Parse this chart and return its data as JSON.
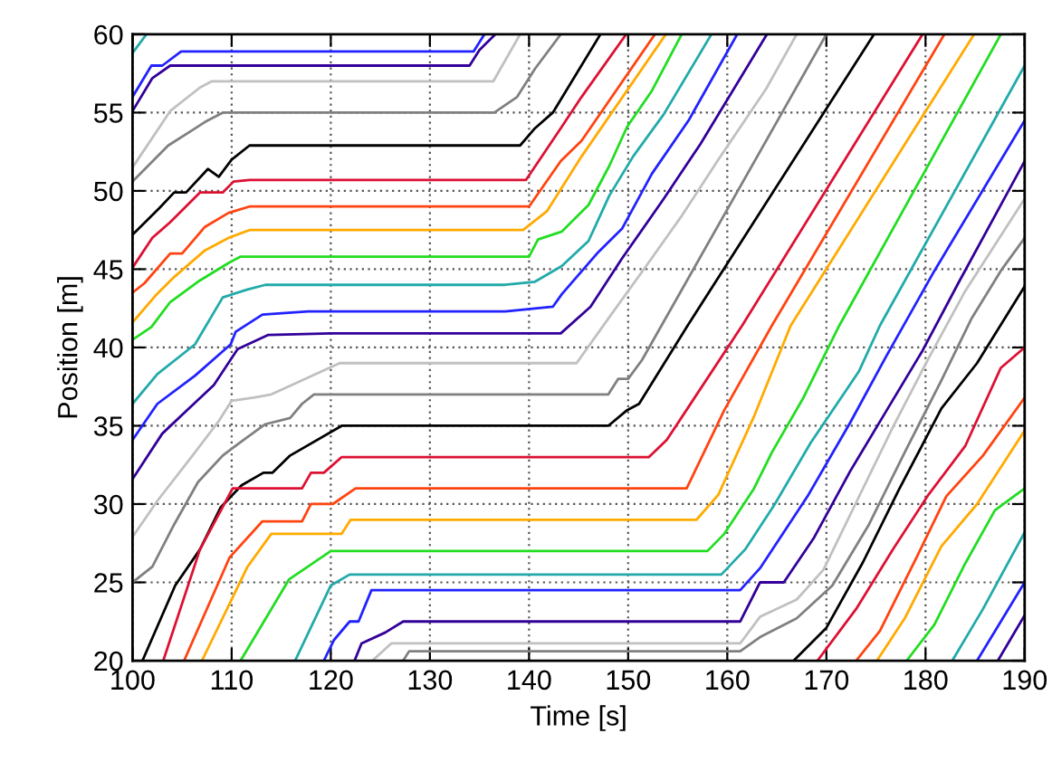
{
  "chart_data": {
    "type": "line",
    "xlabel": "Time [s]",
    "ylabel": "Position [m]",
    "xlim": [
      100,
      190
    ],
    "ylim": [
      20,
      60
    ],
    "xticks": [
      100,
      110,
      120,
      130,
      140,
      150,
      160,
      170,
      180,
      190
    ],
    "yticks": [
      20,
      25,
      30,
      35,
      40,
      45,
      50,
      55,
      60
    ],
    "grid": true,
    "line_style": "solid",
    "series": [
      {
        "color": "#22aaaa",
        "x": [
          100,
          101.4
        ],
        "values": [
          58.8,
          60
        ]
      },
      {
        "color": "#2222ff",
        "x": [
          100,
          101.9,
          103,
          104.9,
          134.4,
          135.5
        ],
        "values": [
          56.0,
          58,
          58,
          58.9,
          58.9,
          60
        ]
      },
      {
        "color": "#330099",
        "x": [
          100,
          102,
          103.8,
          134.0,
          135,
          136.6
        ],
        "values": [
          55.1,
          57.2,
          58,
          58,
          59,
          60
        ]
      },
      {
        "color": "#c0c0c0",
        "x": [
          100,
          103.8,
          106.8,
          108,
          136.4,
          139.1
        ],
        "values": [
          51.5,
          55.1,
          56.6,
          57.0,
          57.0,
          60
        ]
      },
      {
        "color": "#808080",
        "x": [
          100,
          103.6,
          106.1,
          107.3,
          109.1,
          136.5,
          138.8,
          140.6,
          143.2
        ],
        "values": [
          50.6,
          52.9,
          53.9,
          54.4,
          55.0,
          55.0,
          56.0,
          57.8,
          60
        ]
      },
      {
        "color": "#000000",
        "x": [
          100,
          102.7,
          104.2,
          105.4,
          107.6,
          108.7,
          110,
          111.8,
          139.1,
          140.6,
          142.4,
          147.2
        ],
        "values": [
          47.2,
          48.9,
          49.9,
          49.9,
          51.4,
          50.9,
          52.0,
          52.9,
          52.9,
          54.0,
          55.0,
          60
        ]
      },
      {
        "color": "#dd1133",
        "x": [
          100,
          102,
          103.8,
          106.8,
          109.1,
          110.2,
          111.8,
          139.7,
          143.2,
          145.3,
          149.8
        ],
        "values": [
          45.1,
          47.0,
          48.0,
          49.9,
          49.9,
          50.6,
          50.7,
          50.7,
          54.0,
          56.0,
          60
        ]
      },
      {
        "color": "#ff4411",
        "x": [
          100,
          101.2,
          103.8,
          105,
          107.3,
          109.7,
          111.8,
          140,
          143.2,
          145.3,
          152.7
        ],
        "values": [
          43.5,
          44.1,
          46.0,
          46.0,
          47.7,
          48.6,
          49.0,
          49.0,
          51.9,
          53.2,
          60
        ]
      },
      {
        "color": "#ffaa00",
        "x": [
          100,
          102.3,
          104.2,
          107.3,
          109.7,
          111.8,
          139.4,
          141.8,
          145.3,
          153.8
        ],
        "values": [
          41.6,
          43.3,
          44.5,
          46.2,
          47.0,
          47.5,
          47.5,
          48.7,
          52.2,
          60
        ]
      },
      {
        "color": "#22dd22",
        "x": [
          100,
          101.9,
          103.8,
          106.6,
          109.7,
          110.9,
          140,
          140.9,
          143.3,
          146,
          148.1,
          149.9,
          152.4,
          155.4
        ],
        "values": [
          40.5,
          41.3,
          42.9,
          44.2,
          45.4,
          45.8,
          45.8,
          46.9,
          47.4,
          49.1,
          51.6,
          54.1,
          56.4,
          60
        ]
      },
      {
        "color": "#22aaaa",
        "x": [
          100,
          102.5,
          106.3,
          109.1,
          111.6,
          113.4,
          137.6,
          140.6,
          143.3,
          146,
          148.1,
          150.5,
          153.6,
          158.4
        ],
        "values": [
          36.4,
          38.3,
          40.2,
          43.2,
          43.7,
          44.0,
          44.0,
          44.2,
          45.2,
          46.8,
          49.7,
          52.2,
          54.9,
          60
        ]
      },
      {
        "color": "#2222ff",
        "x": [
          100,
          102.5,
          106.3,
          109.9,
          110.4,
          113.1,
          117.7,
          137.6,
          142.4,
          143.3,
          147,
          149.4,
          152.4,
          156.1,
          161
        ],
        "values": [
          34.1,
          36.4,
          38.2,
          40.2,
          41.0,
          42.1,
          42.3,
          42.3,
          42.6,
          43.4,
          46.1,
          47.6,
          51.1,
          54.5,
          60
        ]
      },
      {
        "color": "#330099",
        "x": [
          100,
          103,
          105.5,
          108.2,
          110.6,
          113.7,
          120,
          143.2,
          146.2,
          149.4,
          153.6,
          157.3,
          164
        ],
        "values": [
          31.6,
          34.5,
          36.0,
          37.6,
          39.9,
          40.8,
          40.9,
          40.9,
          42.6,
          45.7,
          49.5,
          53.0,
          60
        ]
      },
      {
        "color": "#c0c0c0",
        "x": [
          100,
          102.5,
          106.3,
          108.7,
          110,
          112.2,
          114,
          120.9,
          144.8,
          148.4,
          151.7,
          155.4,
          159,
          163.9,
          167
        ],
        "values": [
          27.9,
          30.2,
          33.3,
          35.3,
          36.6,
          36.8,
          37.0,
          39.0,
          39.0,
          42.2,
          45.1,
          48.4,
          51.9,
          56.5,
          60
        ]
      },
      {
        "color": "#808080",
        "x": [
          100,
          102,
          104.2,
          106.6,
          109.1,
          111.2,
          113.4,
          115.9,
          117.1,
          118.3,
          148,
          149,
          150,
          151.4,
          170
        ],
        "values": [
          25.0,
          26.0,
          28.7,
          31.4,
          33.1,
          34.1,
          35.1,
          35.5,
          36.4,
          37.0,
          37.0,
          38.0,
          38.0,
          39.2,
          60
        ]
      },
      {
        "color": "#000000",
        "x": [
          101,
          104.3,
          106.8,
          108.9,
          111,
          113.2,
          114.1,
          115.9,
          121.1,
          148,
          149.9,
          151.1,
          156,
          174.8
        ],
        "values": [
          20,
          24.8,
          27.1,
          29.8,
          31.2,
          32.0,
          32.0,
          33.1,
          35.0,
          35.0,
          36.0,
          36.4,
          41.4,
          60
        ]
      },
      {
        "color": "#dd1133",
        "x": [
          103.1,
          106.8,
          110.1,
          117.1,
          118,
          119.3,
          121.1,
          152.1,
          153.9,
          161.5,
          179.7
        ],
        "values": [
          20,
          27.1,
          31.0,
          31.0,
          32.0,
          32.0,
          33.0,
          33.0,
          34.1,
          41.4,
          60
        ]
      },
      {
        "color": "#ff4411",
        "x": [
          105.2,
          109.8,
          113.1,
          117.1,
          118,
          120.2,
          122.5,
          155.9,
          159.7,
          164.5,
          181.9
        ],
        "values": [
          20,
          26.6,
          28.9,
          28.9,
          30.0,
          30.0,
          31.0,
          31.0,
          36.0,
          41.4,
          60
        ]
      },
      {
        "color": "#ffaa00",
        "x": [
          107,
          111.6,
          114,
          121.1,
          122,
          156.9,
          159.1,
          162.7,
          166.4,
          184.9
        ],
        "values": [
          20,
          26.0,
          28.1,
          28.1,
          29.0,
          29.0,
          30.6,
          35.6,
          41.4,
          60
        ]
      },
      {
        "color": "#22dd22",
        "x": [
          110.9,
          115.8,
          120,
          158,
          159.7,
          162.7,
          164.5,
          167.6,
          171.3,
          187.6
        ],
        "values": [
          20,
          25.2,
          27.0,
          27.0,
          28.1,
          31.0,
          33.3,
          36.7,
          41.4,
          60
        ]
      },
      {
        "color": "#22aaaa",
        "x": [
          116.4,
          120,
          121.9,
          159.4,
          161.8,
          164.8,
          168.4,
          173.3,
          175.4,
          190
        ],
        "values": [
          20,
          24.8,
          25.5,
          25.5,
          27.1,
          30.0,
          33.9,
          38.5,
          41.4,
          58
        ]
      },
      {
        "color": "#2222ff",
        "x": [
          119.3,
          120.3,
          121.9,
          122.8,
          124.1,
          161.3,
          163.3,
          168.1,
          172.4,
          176,
          180.9,
          190
        ],
        "values": [
          20,
          21.3,
          22.5,
          22.5,
          24.5,
          24.5,
          25.9,
          30.5,
          35.2,
          39.4,
          44.9,
          54.5
        ]
      },
      {
        "color": "#330099",
        "x": [
          122.4,
          123.1,
          125.5,
          127.3,
          161.3,
          163.3,
          165.7,
          168.7,
          172.4,
          176,
          179.7,
          183.3,
          190
        ],
        "values": [
          20,
          21.1,
          21.8,
          22.5,
          22.5,
          25.0,
          25.0,
          27.8,
          32.1,
          35.9,
          39.8,
          44.1,
          51.9
        ]
      },
      {
        "color": "#c0c0c0",
        "x": [
          124.2,
          126.1,
          161.3,
          163.3,
          167,
          169.7,
          173,
          176.7,
          180.3,
          184,
          190
        ],
        "values": [
          20,
          21.1,
          21.1,
          22.8,
          23.9,
          25.8,
          30.1,
          34.9,
          39.3,
          43.6,
          49.5
        ]
      },
      {
        "color": "#808080",
        "x": [
          127.3,
          127.9,
          161.3,
          163.3,
          167,
          170.6,
          174.3,
          177.9,
          181.6,
          184.6,
          187.6,
          190
        ],
        "values": [
          20,
          20.6,
          20.6,
          21.5,
          22.7,
          24.8,
          28.7,
          33.3,
          37.9,
          41.8,
          44.9,
          47.0
        ]
      },
      {
        "color": "#000000",
        "x": [
          166.7,
          170,
          173.7,
          177.3,
          181.6,
          185.2,
          190
        ],
        "values": [
          20,
          22.1,
          26.3,
          30.9,
          36.1,
          39.0,
          43.9
        ]
      },
      {
        "color": "#dd1133",
        "x": [
          169.1,
          173,
          176.7,
          180.3,
          184,
          187.6,
          190
        ],
        "values": [
          20,
          23.3,
          27.1,
          30.6,
          33.7,
          38.7,
          40.0
        ]
      },
      {
        "color": "#ff4411",
        "x": [
          173,
          175.4,
          179.1,
          182.1,
          185.8,
          190
        ],
        "values": [
          20,
          21.9,
          26.6,
          30.5,
          33.1,
          36.8
        ]
      },
      {
        "color": "#ffaa00",
        "x": [
          175.1,
          177.9,
          181.6,
          185.2,
          190
        ],
        "values": [
          20,
          22.7,
          27.3,
          30.0,
          34.7
        ]
      },
      {
        "color": "#22dd22",
        "x": [
          178.1,
          180.9,
          184,
          187,
          190
        ],
        "values": [
          20,
          22.3,
          26.2,
          29.6,
          31.0
        ]
      },
      {
        "color": "#22aaaa",
        "x": [
          182.7,
          185.8,
          190
        ],
        "values": [
          20,
          23.3,
          28.2
        ]
      },
      {
        "color": "#2222ff",
        "x": [
          185.2,
          190
        ],
        "values": [
          20,
          25.0
        ]
      },
      {
        "color": "#330099",
        "x": [
          187.3,
          190
        ],
        "values": [
          20,
          22.9
        ]
      }
    ]
  }
}
